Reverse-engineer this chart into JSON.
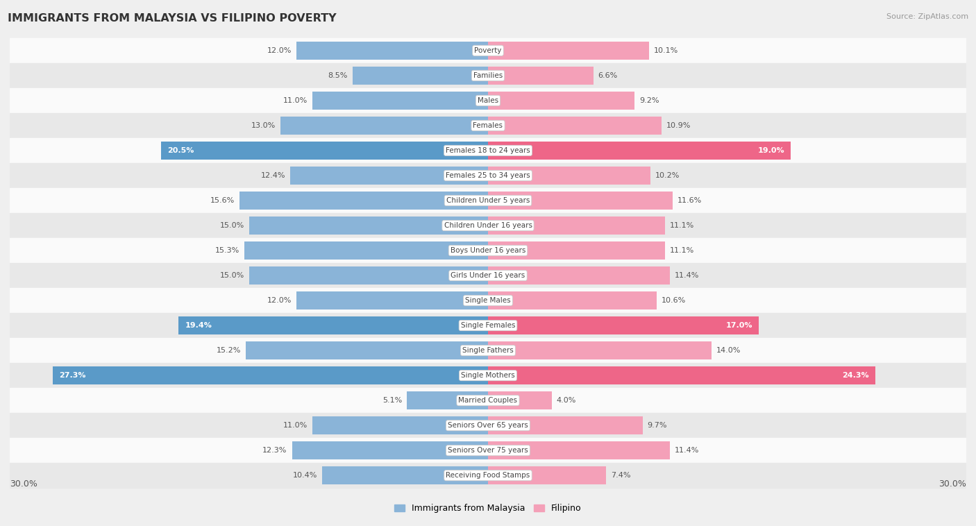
{
  "title": "IMMIGRANTS FROM MALAYSIA VS FILIPINO POVERTY",
  "source": "Source: ZipAtlas.com",
  "categories": [
    "Poverty",
    "Families",
    "Males",
    "Females",
    "Females 18 to 24 years",
    "Females 25 to 34 years",
    "Children Under 5 years",
    "Children Under 16 years",
    "Boys Under 16 years",
    "Girls Under 16 years",
    "Single Males",
    "Single Females",
    "Single Fathers",
    "Single Mothers",
    "Married Couples",
    "Seniors Over 65 years",
    "Seniors Over 75 years",
    "Receiving Food Stamps"
  ],
  "malaysia_values": [
    12.0,
    8.5,
    11.0,
    13.0,
    20.5,
    12.4,
    15.6,
    15.0,
    15.3,
    15.0,
    12.0,
    19.4,
    15.2,
    27.3,
    5.1,
    11.0,
    12.3,
    10.4
  ],
  "filipino_values": [
    10.1,
    6.6,
    9.2,
    10.9,
    19.0,
    10.2,
    11.6,
    11.1,
    11.1,
    11.4,
    10.6,
    17.0,
    14.0,
    24.3,
    4.0,
    9.7,
    11.4,
    7.4
  ],
  "malaysia_color": "#8ab4d8",
  "malaysia_color_highlight": "#5a9ac8",
  "filipino_color": "#f4a0b8",
  "filipino_color_highlight": "#ee6688",
  "bar_height": 0.72,
  "xlim": 30.0,
  "axis_label_left": "30.0%",
  "axis_label_right": "30.0%",
  "bg_color": "#efefef",
  "row_bg_even": "#fafafa",
  "row_bg_odd": "#e8e8e8",
  "legend_malaysia": "Immigrants from Malaysia",
  "legend_filipino": "Filipino",
  "highlight_rows": [
    4,
    11,
    13
  ]
}
